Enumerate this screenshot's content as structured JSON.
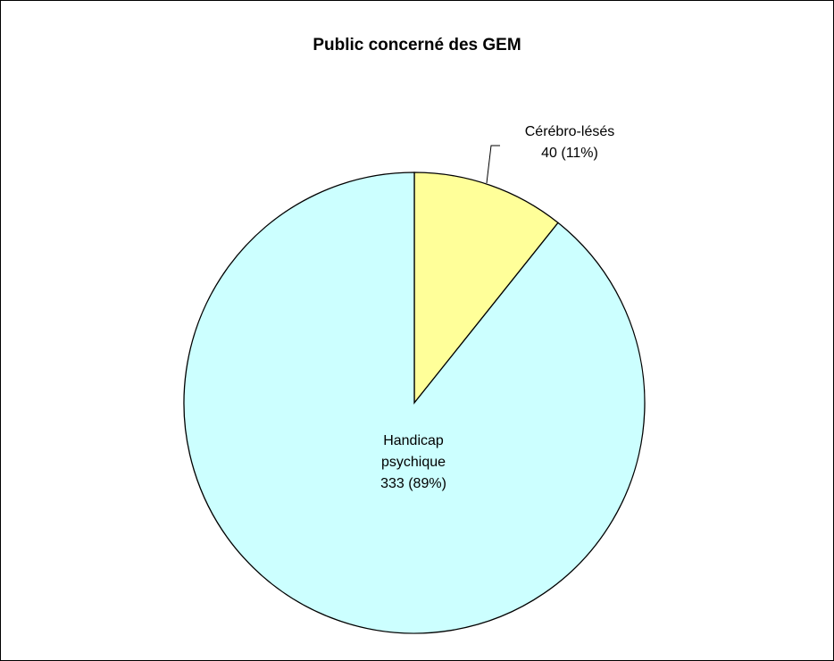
{
  "chart_data": {
    "type": "pie",
    "title": "Public concerné des GEM",
    "slices": [
      {
        "name": "Cérébro-lésés",
        "value": 40,
        "percent": "11%",
        "label_lines": [
          "Cérébro-lésés",
          "40 (11%)"
        ],
        "color": "#FFFF99"
      },
      {
        "name": "Handicap psychique",
        "value": 333,
        "percent": "89%",
        "label_lines": [
          "Handicap",
          "psychique",
          "333 (89%)"
        ],
        "color": "#CCFFFF"
      }
    ],
    "start_angle": "12 o'clock",
    "direction": "clockwise",
    "border_color": "#000000",
    "legend": "none"
  }
}
